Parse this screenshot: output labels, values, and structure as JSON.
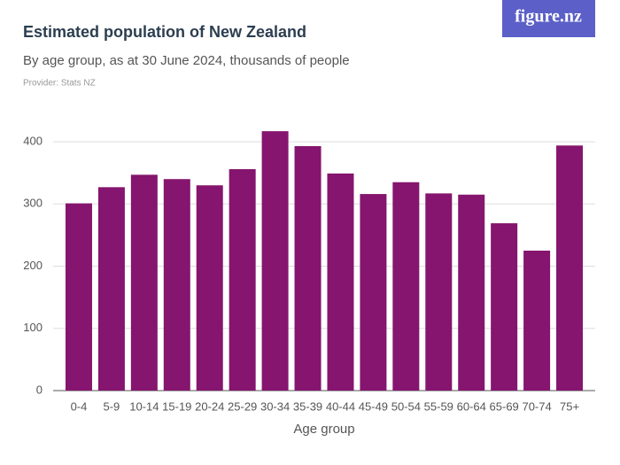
{
  "logo": "figure.nz",
  "chart_data": {
    "type": "bar",
    "title": "Estimated population of New Zealand",
    "subtitle": "By age group, as at 30 June 2024, thousands of people",
    "provider": "Provider: Stats NZ",
    "x_label": "Age group",
    "categories": [
      "0-4",
      "5-9",
      "10-14",
      "15-19",
      "20-24",
      "25-29",
      "30-34",
      "35-39",
      "40-44",
      "45-49",
      "50-54",
      "55-59",
      "60-64",
      "65-69",
      "70-74",
      "75+"
    ],
    "values": [
      301,
      327,
      347,
      340,
      330,
      356,
      417,
      393,
      349,
      316,
      335,
      317,
      315,
      269,
      225,
      394
    ],
    "color": "#85156e",
    "ylim": [
      0,
      430
    ],
    "yticks": [
      0,
      100,
      200,
      300,
      400
    ],
    "grid": true
  }
}
